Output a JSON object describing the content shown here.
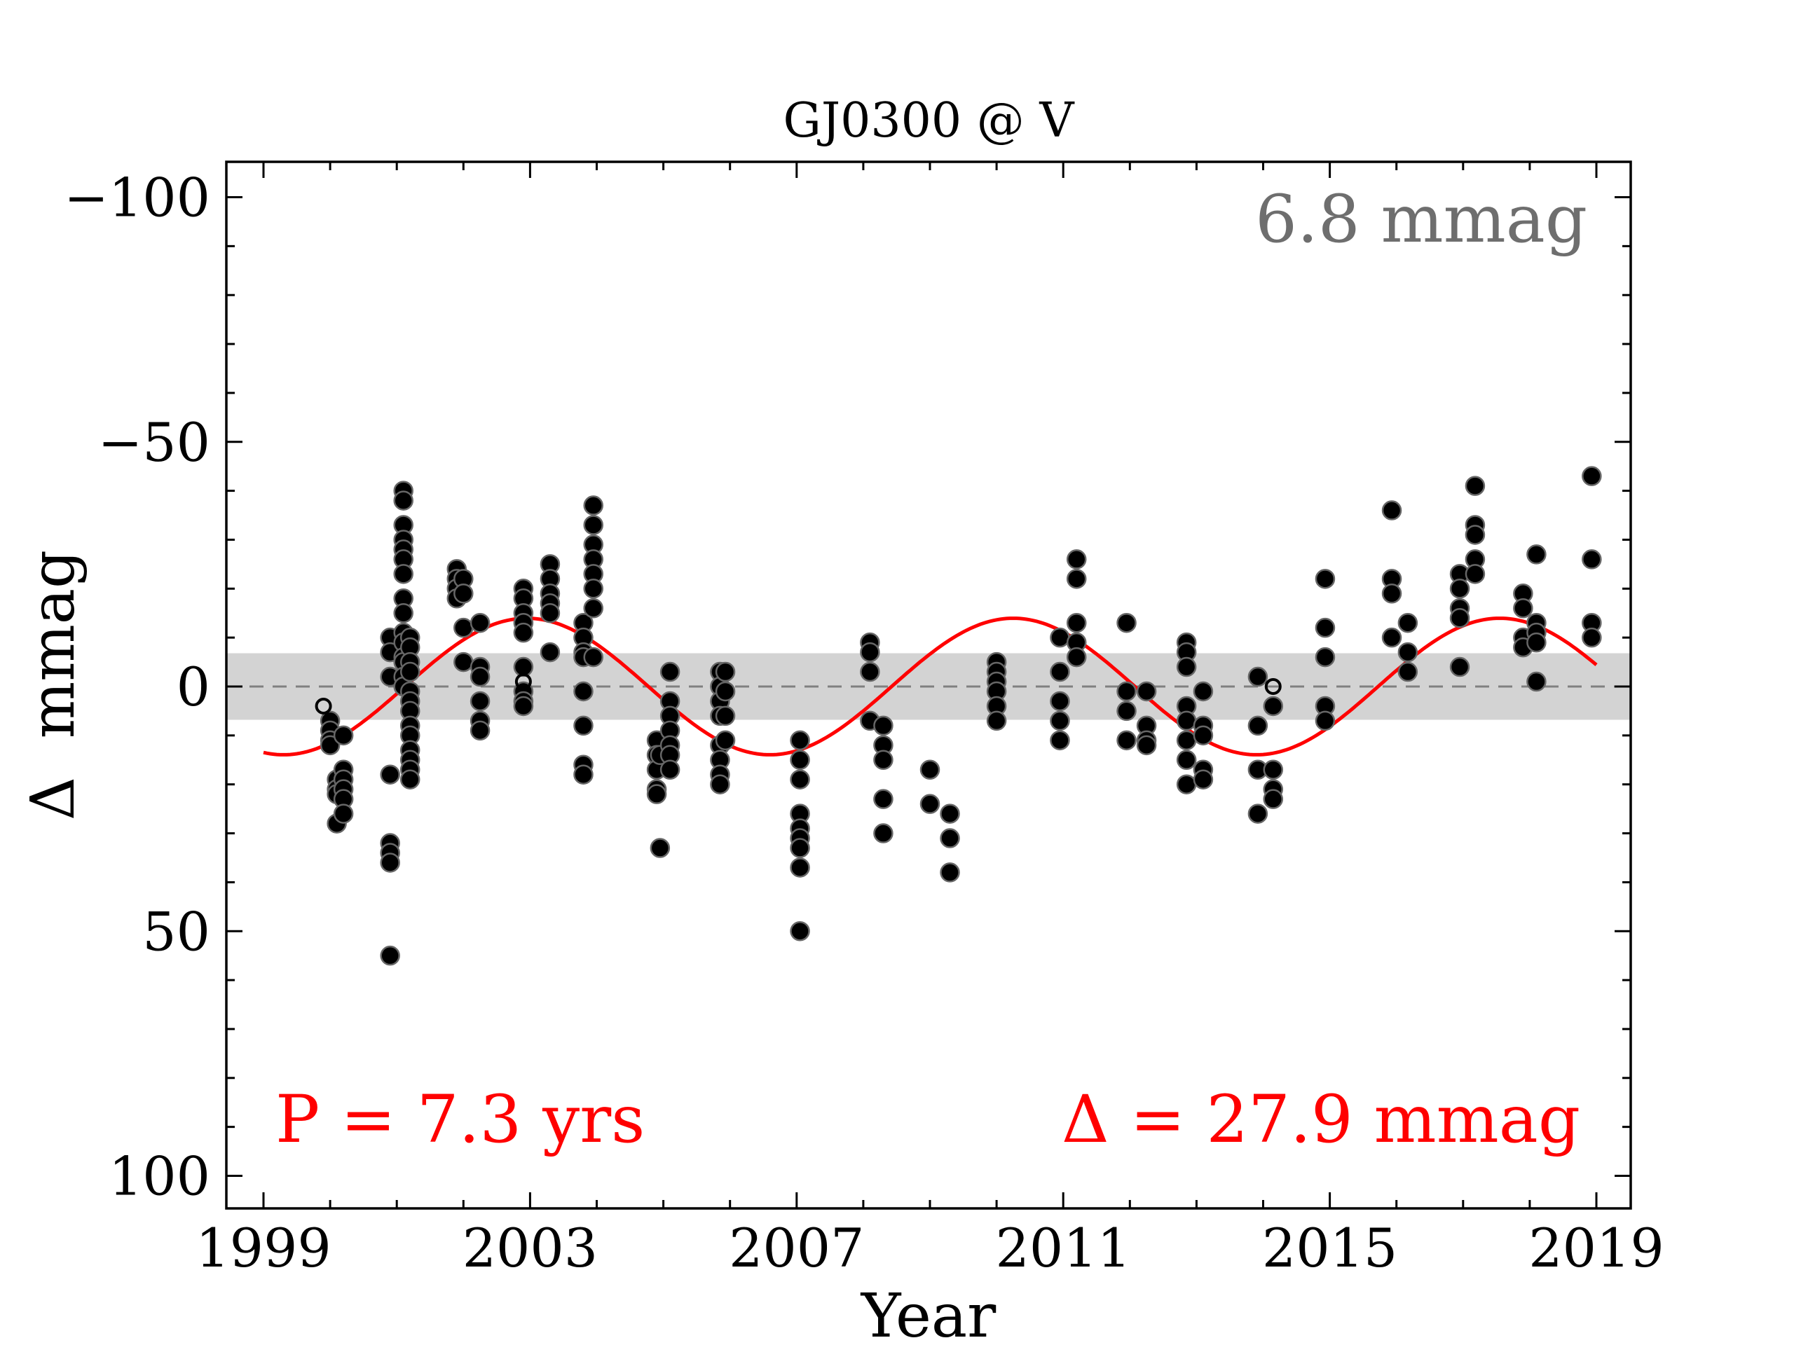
{
  "chart_data": {
    "type": "scatter",
    "title": "GJ0300 @ V",
    "xlabel": "Year",
    "ylabel": "Δ  mmag",
    "xlim": [
      1998.7,
      2019.5
    ],
    "ylim": [
      107,
      -107
    ],
    "y_inverted": true,
    "x_ticks": [
      1999,
      2003,
      2007,
      2011,
      2015,
      2019
    ],
    "x_tick_labels": [
      "1999",
      "2003",
      "2007",
      "2011",
      "2015",
      "2019"
    ],
    "y_ticks": [
      -100,
      -50,
      0,
      50,
      100
    ],
    "y_tick_labels": [
      "−100",
      "−50",
      "0",
      "50",
      "100"
    ],
    "grid": false,
    "band": {
      "half_width": 6.8,
      "label": "6.8 mmag",
      "color": "#d3d3d3"
    },
    "zero_line": {
      "value": 0,
      "style": "dashed",
      "color": "#808080"
    },
    "fit": {
      "type": "sinusoid",
      "period_yrs": 7.3,
      "amplitude_full": 27.9,
      "phase_peak_year": 2002.95,
      "x_range": [
        1999.0,
        2019.0
      ],
      "color": "#ff0000",
      "period_label": "P = 7.3 yrs",
      "amplitude_label": "Δ = 27.9 mmag"
    },
    "open_points": [
      [
        1999.9,
        4
      ],
      [
        2014.15,
        0
      ],
      [
        2002.9,
        -1
      ]
    ],
    "series": [
      {
        "name": "observations",
        "points": [
          [
            2000.0,
            7
          ],
          [
            2000.0,
            9
          ],
          [
            2000.0,
            11
          ],
          [
            2000.0,
            12
          ],
          [
            2000.1,
            19
          ],
          [
            2000.1,
            21
          ],
          [
            2000.1,
            22
          ],
          [
            2000.1,
            28
          ],
          [
            2000.2,
            10
          ],
          [
            2000.2,
            17
          ],
          [
            2000.2,
            19
          ],
          [
            2000.2,
            21
          ],
          [
            2000.2,
            23
          ],
          [
            2000.2,
            26
          ],
          [
            2000.9,
            -10
          ],
          [
            2000.9,
            -7
          ],
          [
            2000.9,
            -2
          ],
          [
            2000.9,
            18
          ],
          [
            2000.9,
            32
          ],
          [
            2000.9,
            34
          ],
          [
            2000.9,
            36
          ],
          [
            2000.9,
            55
          ],
          [
            2001.1,
            -40
          ],
          [
            2001.1,
            -38
          ],
          [
            2001.1,
            -33
          ],
          [
            2001.1,
            -30
          ],
          [
            2001.1,
            -28
          ],
          [
            2001.1,
            -26
          ],
          [
            2001.1,
            -23
          ],
          [
            2001.1,
            -18
          ],
          [
            2001.1,
            -15
          ],
          [
            2001.1,
            -11
          ],
          [
            2001.1,
            -9
          ],
          [
            2001.1,
            -6
          ],
          [
            2001.1,
            -5
          ],
          [
            2001.1,
            -2
          ],
          [
            2001.1,
            0
          ],
          [
            2001.2,
            -10
          ],
          [
            2001.2,
            -8
          ],
          [
            2001.2,
            -5
          ],
          [
            2001.2,
            -3
          ],
          [
            2001.2,
            1
          ],
          [
            2001.2,
            3
          ],
          [
            2001.2,
            5
          ],
          [
            2001.2,
            8
          ],
          [
            2001.2,
            10
          ],
          [
            2001.2,
            13
          ],
          [
            2001.2,
            15
          ],
          [
            2001.2,
            17
          ],
          [
            2001.2,
            19
          ],
          [
            2001.9,
            -24
          ],
          [
            2001.9,
            -22
          ],
          [
            2001.9,
            -20
          ],
          [
            2001.9,
            -18
          ],
          [
            2002.0,
            -22
          ],
          [
            2002.0,
            -19
          ],
          [
            2002.0,
            -12
          ],
          [
            2002.0,
            -5
          ],
          [
            2002.25,
            -13
          ],
          [
            2002.25,
            -4
          ],
          [
            2002.25,
            -2
          ],
          [
            2002.25,
            3
          ],
          [
            2002.25,
            7
          ],
          [
            2002.25,
            9
          ],
          [
            2002.9,
            -20
          ],
          [
            2002.9,
            -18
          ],
          [
            2002.9,
            -15
          ],
          [
            2002.9,
            -13
          ],
          [
            2002.9,
            -11
          ],
          [
            2002.9,
            -4
          ],
          [
            2002.9,
            1
          ],
          [
            2002.9,
            3
          ],
          [
            2002.9,
            4
          ],
          [
            2003.3,
            -25
          ],
          [
            2003.3,
            -22
          ],
          [
            2003.3,
            -19
          ],
          [
            2003.3,
            -17
          ],
          [
            2003.3,
            -15
          ],
          [
            2003.3,
            -7
          ],
          [
            2003.8,
            -13
          ],
          [
            2003.8,
            -10
          ],
          [
            2003.8,
            -7
          ],
          [
            2003.8,
            -6
          ],
          [
            2003.8,
            1
          ],
          [
            2003.8,
            8
          ],
          [
            2003.8,
            16
          ],
          [
            2003.8,
            18
          ],
          [
            2003.95,
            -37
          ],
          [
            2003.95,
            -33
          ],
          [
            2003.95,
            -29
          ],
          [
            2003.95,
            -26
          ],
          [
            2003.95,
            -23
          ],
          [
            2003.95,
            -20
          ],
          [
            2003.95,
            -16
          ],
          [
            2003.95,
            -6
          ],
          [
            2004.9,
            11
          ],
          [
            2004.9,
            14
          ],
          [
            2004.9,
            17
          ],
          [
            2004.9,
            21
          ],
          [
            2004.9,
            22
          ],
          [
            2004.95,
            33
          ],
          [
            2004.95,
            14
          ],
          [
            2005.1,
            -3
          ],
          [
            2005.1,
            3
          ],
          [
            2005.1,
            6
          ],
          [
            2005.1,
            9
          ],
          [
            2005.1,
            12
          ],
          [
            2005.1,
            14
          ],
          [
            2005.1,
            17
          ],
          [
            2005.85,
            -3
          ],
          [
            2005.85,
            0
          ],
          [
            2005.85,
            3
          ],
          [
            2005.85,
            6
          ],
          [
            2005.85,
            12
          ],
          [
            2005.85,
            15
          ],
          [
            2005.85,
            18
          ],
          [
            2005.85,
            20
          ],
          [
            2005.93,
            -3
          ],
          [
            2005.93,
            1
          ],
          [
            2005.93,
            6
          ],
          [
            2005.93,
            11
          ],
          [
            2007.05,
            11
          ],
          [
            2007.05,
            15
          ],
          [
            2007.05,
            19
          ],
          [
            2007.05,
            26
          ],
          [
            2007.05,
            29
          ],
          [
            2007.05,
            31
          ],
          [
            2007.05,
            33
          ],
          [
            2007.05,
            37
          ],
          [
            2007.05,
            50
          ],
          [
            2008.1,
            -9
          ],
          [
            2008.1,
            -7
          ],
          [
            2008.1,
            -3
          ],
          [
            2008.1,
            7
          ],
          [
            2008.3,
            8
          ],
          [
            2008.3,
            12
          ],
          [
            2008.3,
            15
          ],
          [
            2008.3,
            23
          ],
          [
            2008.3,
            30
          ],
          [
            2009.0,
            17
          ],
          [
            2009.0,
            24
          ],
          [
            2009.3,
            26
          ],
          [
            2009.3,
            31
          ],
          [
            2009.3,
            38
          ],
          [
            2010.0,
            -5
          ],
          [
            2010.0,
            -3
          ],
          [
            2010.0,
            -1
          ],
          [
            2010.0,
            1
          ],
          [
            2010.0,
            4
          ],
          [
            2010.0,
            7
          ],
          [
            2010.95,
            -10
          ],
          [
            2010.95,
            -3
          ],
          [
            2010.95,
            3
          ],
          [
            2010.95,
            7
          ],
          [
            2010.95,
            11
          ],
          [
            2011.2,
            -26
          ],
          [
            2011.2,
            -22
          ],
          [
            2011.2,
            -13
          ],
          [
            2011.2,
            -9
          ],
          [
            2011.2,
            -6
          ],
          [
            2011.95,
            -13
          ],
          [
            2011.95,
            1
          ],
          [
            2011.95,
            5
          ],
          [
            2011.95,
            11
          ],
          [
            2012.25,
            1
          ],
          [
            2012.25,
            8
          ],
          [
            2012.25,
            11
          ],
          [
            2012.25,
            12
          ],
          [
            2012.85,
            -9
          ],
          [
            2012.85,
            -7
          ],
          [
            2012.85,
            -4
          ],
          [
            2012.85,
            4
          ],
          [
            2012.85,
            7
          ],
          [
            2012.85,
            11
          ],
          [
            2012.85,
            15
          ],
          [
            2012.85,
            20
          ],
          [
            2013.1,
            1
          ],
          [
            2013.1,
            8
          ],
          [
            2013.1,
            10
          ],
          [
            2013.1,
            17
          ],
          [
            2013.1,
            19
          ],
          [
            2013.92,
            -2
          ],
          [
            2013.92,
            8
          ],
          [
            2013.92,
            17
          ],
          [
            2013.92,
            26
          ],
          [
            2014.15,
            4
          ],
          [
            2014.15,
            17
          ],
          [
            2014.15,
            21
          ],
          [
            2014.15,
            23
          ],
          [
            2014.93,
            -22
          ],
          [
            2014.93,
            -12
          ],
          [
            2014.93,
            -6
          ],
          [
            2014.93,
            4
          ],
          [
            2014.93,
            7
          ],
          [
            2015.93,
            -36
          ],
          [
            2015.93,
            -22
          ],
          [
            2015.93,
            -19
          ],
          [
            2015.93,
            -10
          ],
          [
            2016.17,
            -13
          ],
          [
            2016.17,
            -7
          ],
          [
            2016.17,
            -3
          ],
          [
            2016.95,
            -23
          ],
          [
            2016.95,
            -20
          ],
          [
            2016.95,
            -16
          ],
          [
            2016.95,
            -14
          ],
          [
            2016.95,
            -4
          ],
          [
            2017.18,
            -41
          ],
          [
            2017.18,
            -33
          ],
          [
            2017.18,
            -31
          ],
          [
            2017.18,
            -26
          ],
          [
            2017.18,
            -23
          ],
          [
            2017.9,
            -19
          ],
          [
            2017.9,
            -16
          ],
          [
            2017.9,
            -10
          ],
          [
            2017.9,
            -8
          ],
          [
            2018.1,
            -27
          ],
          [
            2018.1,
            -13
          ],
          [
            2018.1,
            -11
          ],
          [
            2018.1,
            -9
          ],
          [
            2018.1,
            -1
          ],
          [
            2018.93,
            -43
          ],
          [
            2018.93,
            -26
          ],
          [
            2018.93,
            -13
          ],
          [
            2018.93,
            -10
          ]
        ]
      }
    ]
  }
}
